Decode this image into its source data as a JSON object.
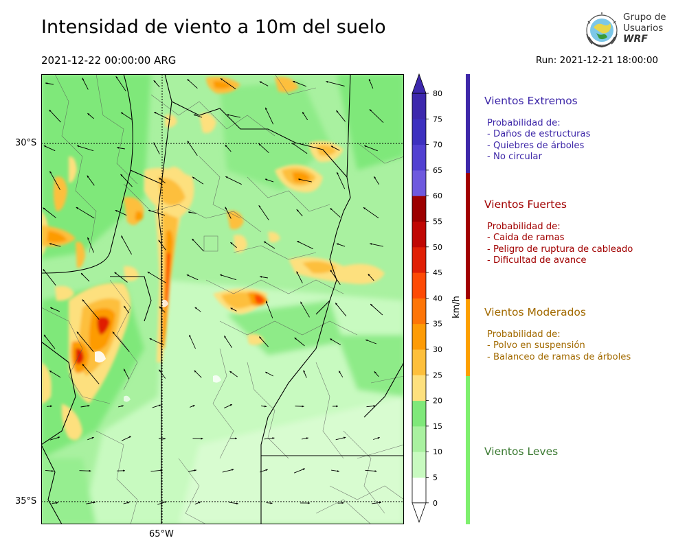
{
  "header": {
    "title": "Intensidad de viento a 10m del suelo",
    "valid_time": "2021-12-22 00:00:00 ARG",
    "run_time": "Run: 2021-12-21 18:00:00"
  },
  "logo": {
    "line1": "Grupo de",
    "line2": "Usuarios",
    "line3": "WRF"
  },
  "map": {
    "lat_labels": [
      "30°S",
      "35°S"
    ],
    "lon_labels": [
      "65°W"
    ]
  },
  "colorbar": {
    "unit": "km/h",
    "ticks": [
      "0",
      "5",
      "10",
      "15",
      "20",
      "25",
      "30",
      "35",
      "40",
      "45",
      "50",
      "55",
      "60",
      "65",
      "70",
      "75",
      "80"
    ],
    "colors": [
      "#ffffff",
      "#e3fde0",
      "#c8fac0",
      "#a9f1a0",
      "#7fe87a",
      "#fde07e",
      "#fdbf3c",
      "#fd9b06",
      "#fd7507",
      "#fd4a05",
      "#e01f05",
      "#c00704",
      "#9c0000",
      "#6e59de",
      "#5140d1",
      "#3d30bf",
      "#3d28ad"
    ]
  },
  "categories": [
    {
      "key": "extremos",
      "color": "#3d27a8",
      "heading": "Vientos Extremos",
      "lines": [
        "Probabilidad de:",
        "- Daños de estructuras",
        "- Quiebres de árboles",
        "- No circular"
      ]
    },
    {
      "key": "fuertes",
      "color": "#a10000",
      "heading": "Vientos Fuertes",
      "lines": [
        "Probabilidad de:",
        "- Caida de ramas",
        "- Peligro de ruptura de cableado",
        "- Dificultad de avance"
      ]
    },
    {
      "key": "moderados",
      "color": "#a26a00",
      "bar_color": "#fda000",
      "heading": "Vientos Moderados",
      "lines": [
        "Probabilidad de:",
        "- Polvo en suspensión",
        "- Balanceo de ramas de árboles"
      ]
    },
    {
      "key": "leves",
      "color": "#3b7a32",
      "bar_color": "#7ef06e",
      "heading": "Vientos Leves",
      "lines": []
    }
  ]
}
